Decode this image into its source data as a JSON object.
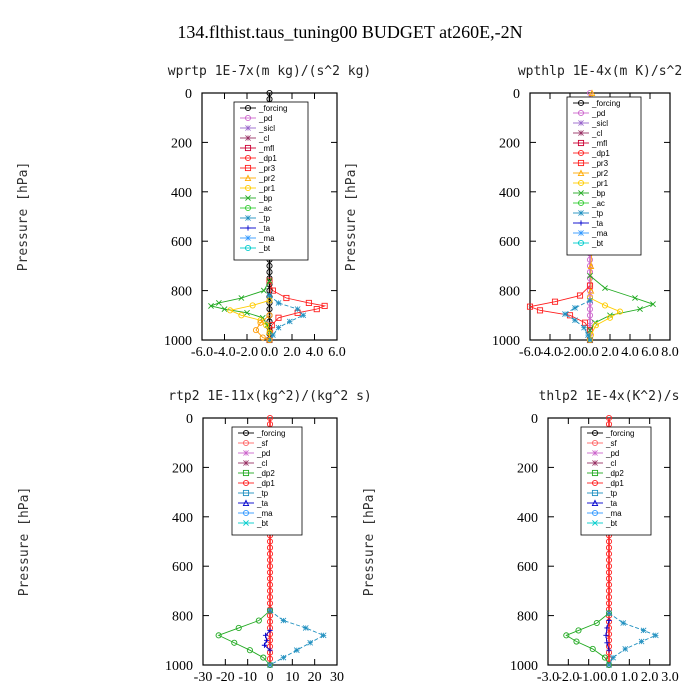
{
  "title": "134.flthist.taus_tuning00  BUDGET at260E,-2N",
  "chart_data": [
    {
      "type": "line",
      "title": "wprtp  1E-7x(m kg)/(s^2 kg)",
      "ylabel": "Pressure [hPa]",
      "xlim": [
        -6,
        6
      ],
      "ylim": [
        0,
        1000
      ],
      "xticks": [
        "-6.0",
        "-4.0",
        "-2.0",
        "0.0",
        "2.0",
        "4.0",
        "6.0"
      ],
      "yticks": [
        "0",
        "200",
        "400",
        "600",
        "800",
        "1000"
      ],
      "legend": [
        "_forcing",
        "_pd",
        "_sicl",
        "_cl",
        "_mfl",
        "_dp1",
        "_pr3",
        "_pr2",
        "_pr1",
        "_bp",
        "_ac",
        "_tp",
        "_ta",
        "_ma",
        "_bt"
      ],
      "series": [
        {
          "name": "_forcing",
          "color": "#000000",
          "marker": "circle",
          "p": [
            0,
            1000
          ],
          "x": [
            0,
            0
          ]
        },
        {
          "name": "_pr3",
          "color": "#ff2020",
          "marker": "square",
          "p": [
            760,
            800,
            830,
            850,
            862,
            875,
            890,
            910,
            940,
            970,
            1000
          ],
          "x": [
            0,
            0.3,
            1.5,
            3.5,
            4.9,
            4.2,
            2.5,
            0.8,
            0.2,
            0.05,
            0
          ]
        },
        {
          "name": "_bp",
          "color": "#22aa22",
          "marker": "x",
          "p": [
            760,
            800,
            830,
            850,
            862,
            875,
            890,
            910,
            940,
            970,
            1000
          ],
          "x": [
            0,
            -0.5,
            -2.5,
            -4.5,
            -5.2,
            -4.0,
            -2.0,
            -0.6,
            -0.2,
            0,
            0
          ]
        },
        {
          "name": "_pr1",
          "color": "#ffcc00",
          "marker": "circle",
          "p": [
            840,
            860,
            880,
            900,
            920,
            940,
            970,
            1000
          ],
          "x": [
            0,
            -1.5,
            -3.5,
            -2.5,
            -0.8,
            -0.3,
            0,
            0
          ]
        },
        {
          "name": "_tp",
          "color": "#2090c0",
          "marker": "star",
          "p": [
            820,
            850,
            875,
            900,
            925,
            950,
            980,
            1000
          ],
          "x": [
            0,
            0.8,
            2.5,
            3.0,
            1.8,
            0.8,
            0.3,
            0
          ]
        },
        {
          "name": "_ac",
          "color": "#ff9900",
          "marker": "circle",
          "p": [
            900,
            930,
            960,
            990,
            1000
          ],
          "x": [
            0,
            -0.8,
            -1.2,
            -0.6,
            0
          ]
        }
      ]
    },
    {
      "type": "line",
      "title": "wpthlp  1E-4x(m K)/s^2",
      "ylabel": "Pressure [hPa]",
      "xlim": [
        -6,
        8
      ],
      "ylim": [
        0,
        1000
      ],
      "xticks": [
        "-6.0",
        "-4.0",
        "-2.0",
        "0.0",
        "2.0",
        "4.0",
        "6.0",
        "8.0"
      ],
      "yticks": [
        "0",
        "200",
        "400",
        "600",
        "800",
        "1000"
      ],
      "legend": [
        "_forcing",
        "_pd",
        "_sicl",
        "_cl",
        "_mfl",
        "_dp1",
        "_pr3",
        "_pr2",
        "_pr1",
        "_bp",
        "_ac",
        "_tp",
        "_ta",
        "_ma",
        "_bt"
      ],
      "series": [
        {
          "name": "_forcing",
          "color": "#cc66cc",
          "marker": "circle",
          "p": [
            0,
            1000
          ],
          "x": [
            0,
            0
          ]
        },
        {
          "name": "_pr2",
          "color": "#ffaa00",
          "marker": "tri",
          "p": [
            0,
            100,
            200,
            300,
            400,
            500,
            600,
            700,
            800
          ],
          "x": [
            0.2,
            0.3,
            0.3,
            0.3,
            0.2,
            0.2,
            0.2,
            0.1,
            0.1
          ]
        },
        {
          "name": "_pr3",
          "color": "#ff2020",
          "marker": "square",
          "p": [
            780,
            820,
            845,
            865,
            880,
            900,
            930,
            960,
            1000
          ],
          "x": [
            0,
            -1.0,
            -3.5,
            -6.0,
            -5.0,
            -2.0,
            -0.5,
            0,
            0
          ]
        },
        {
          "name": "_bp",
          "color": "#22aa22",
          "marker": "x",
          "p": [
            740,
            790,
            830,
            855,
            875,
            900,
            930,
            960,
            1000
          ],
          "x": [
            0,
            1.5,
            4.5,
            6.3,
            5.0,
            2.0,
            0.5,
            0,
            0
          ]
        },
        {
          "name": "_pr1",
          "color": "#ffcc00",
          "marker": "circle",
          "p": [
            830,
            860,
            885,
            910,
            940,
            980,
            1000
          ],
          "x": [
            0,
            1.5,
            3.0,
            2.0,
            0.6,
            0.1,
            0
          ]
        },
        {
          "name": "_tp",
          "color": "#2090c0",
          "marker": "star",
          "p": [
            840,
            870,
            895,
            920,
            950,
            980,
            1000
          ],
          "x": [
            0,
            -1.5,
            -2.5,
            -1.5,
            -0.6,
            -0.2,
            0
          ]
        }
      ]
    },
    {
      "type": "line",
      "title": "rtp2  1E-11x(kg^2)/(kg^2 s)",
      "ylabel": "Pressure [hPa]",
      "xlim": [
        -30,
        30
      ],
      "ylim": [
        0,
        1000
      ],
      "xticks": [
        "-30",
        "-20",
        "-10",
        "0",
        "10",
        "20",
        "30"
      ],
      "yticks": [
        "0",
        "200",
        "400",
        "600",
        "800",
        "1000"
      ],
      "legend": [
        "_forcing",
        "_sf",
        "_pd",
        "_cl",
        "_dp2",
        "_dp1",
        "_tp",
        "_ta",
        "_ma",
        "_bt"
      ],
      "series": [
        {
          "name": "_forcing",
          "color": "#ff2020",
          "marker": "circle",
          "p": [
            0,
            1000
          ],
          "x": [
            0,
            0
          ]
        },
        {
          "name": "_dp1",
          "color": "#22aa22",
          "marker": "circle",
          "p": [
            780,
            820,
            850,
            880,
            910,
            940,
            970,
            1000
          ],
          "x": [
            0,
            -5,
            -14,
            -23,
            -16,
            -9,
            -3,
            0
          ]
        },
        {
          "name": "_tp",
          "color": "#2090c0",
          "marker": "star",
          "p": [
            780,
            820,
            850,
            880,
            910,
            940,
            970,
            1000
          ],
          "x": [
            0,
            6,
            16,
            24,
            18,
            12,
            6,
            0
          ]
        },
        {
          "name": "_ta",
          "color": "#0000cc",
          "marker": "plus",
          "p": [
            860,
            880,
            900,
            920,
            940
          ],
          "x": [
            0,
            -2,
            -1.5,
            -2.5,
            0
          ]
        }
      ]
    },
    {
      "type": "line",
      "title": "thlp2  1E-4x(K^2)/s",
      "ylabel": "Pressure [hPa]",
      "xlim": [
        -3,
        3
      ],
      "ylim": [
        0,
        1000
      ],
      "xticks": [
        "-3.0",
        "-2.0",
        "-1.0",
        "0.0",
        "1.0",
        "2.0",
        "3.0"
      ],
      "yticks": [
        "0",
        "200",
        "400",
        "600",
        "800",
        "1000"
      ],
      "legend": [
        "_forcing",
        "_sf",
        "_pd",
        "_cl",
        "_dp2",
        "_dp1",
        "_tp",
        "_ta",
        "_ma",
        "_bt"
      ],
      "series": [
        {
          "name": "_forcing",
          "color": "#ff2020",
          "marker": "circle",
          "p": [
            0,
            1000
          ],
          "x": [
            0,
            0
          ]
        },
        {
          "name": "_dp1",
          "color": "#22aa22",
          "marker": "circle",
          "p": [
            790,
            830,
            860,
            880,
            905,
            935,
            970,
            1000
          ],
          "x": [
            0,
            -0.6,
            -1.5,
            -2.1,
            -1.6,
            -0.8,
            -0.2,
            0
          ]
        },
        {
          "name": "_tp",
          "color": "#2090c0",
          "marker": "star",
          "p": [
            790,
            830,
            860,
            880,
            905,
            935,
            970,
            1000
          ],
          "x": [
            0,
            0.7,
            1.7,
            2.3,
            1.6,
            0.8,
            0.2,
            0
          ]
        },
        {
          "name": "_ta",
          "color": "#0000cc",
          "marker": "plus",
          "p": [
            820,
            850,
            880,
            910,
            940
          ],
          "x": [
            0,
            -0.1,
            -0.15,
            -0.1,
            0
          ]
        }
      ]
    }
  ]
}
